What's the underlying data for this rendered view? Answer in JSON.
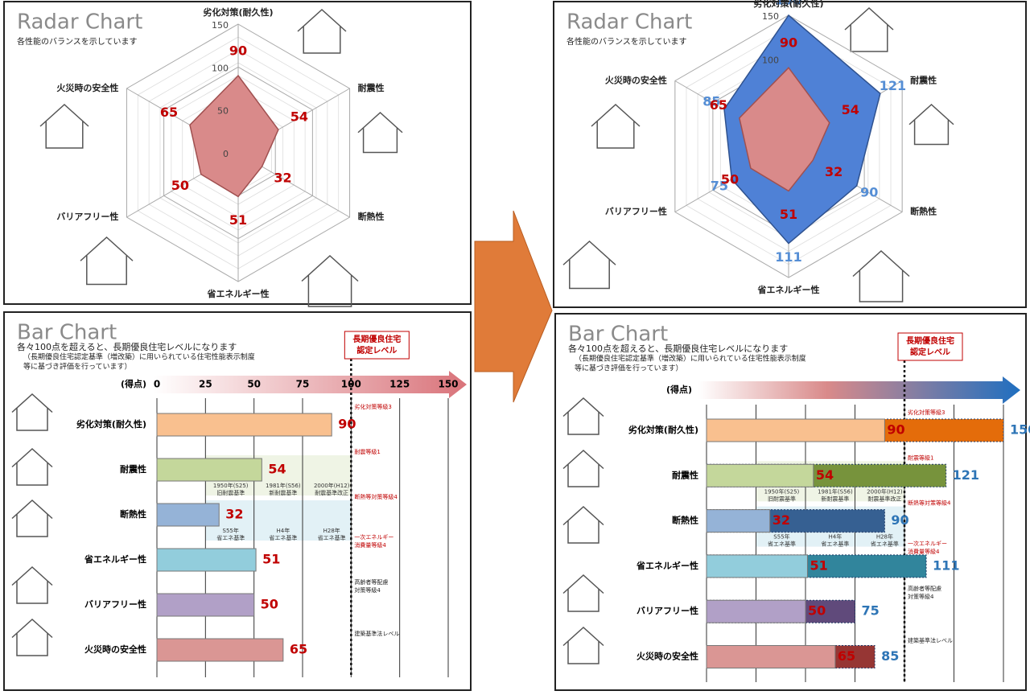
{
  "chart_data": [
    {
      "type": "radar",
      "title": "Radar Chart",
      "subtitle": "各性能のバランスを示しています",
      "categories": [
        "劣化対策(耐久性)",
        "耐震性",
        "断熱性",
        "省エネルギー性",
        "バリアフリー性",
        "火災時の安全性"
      ],
      "series": [
        {
          "color": "#d98a8a",
          "label_color": "#c00000",
          "values": [
            90,
            54,
            32,
            51,
            50,
            65
          ]
        }
      ],
      "rlim": [
        0,
        150
      ],
      "rticks": [
        0,
        50,
        100,
        150
      ]
    },
    {
      "type": "radar",
      "title": "Radar Chart",
      "subtitle": "各性能のバランスを示しています",
      "categories": [
        "劣化対策(耐久性)",
        "耐震性",
        "断熱性",
        "省エネルギー性",
        "バリアフリー性",
        "火災時の安全性"
      ],
      "series": [
        {
          "color": "#4f81d6",
          "label_color": "#558ed5",
          "values": [
            150,
            121,
            90,
            111,
            75,
            85
          ]
        },
        {
          "color": "#d98a8a",
          "label_color": "#c00000",
          "values": [
            90,
            54,
            32,
            51,
            50,
            65
          ]
        }
      ],
      "rlim": [
        0,
        150
      ],
      "rticks": [
        100,
        150
      ]
    },
    {
      "type": "bar",
      "title": "Bar Chart",
      "subtitle": [
        "各々100点を超えると、長期優良住宅レベルになります",
        "（長期優良住宅認定基準（増改築）に用いられている住宅性能表示制度",
        "等に基づき評価を行っています）"
      ],
      "xlabel": "(得点)",
      "categories": [
        "劣化対策(耐久性)",
        "耐震性",
        "断熱性",
        "省エネルギー性",
        "バリアフリー性",
        "火災時の安全性"
      ],
      "series": [
        {
          "colors": [
            "#f9c08f",
            "#c4d79b",
            "#95b3d7",
            "#92cddc",
            "#b1a0c7",
            "#da9694"
          ],
          "label_color": "#c00000",
          "values": [
            90,
            54,
            32,
            51,
            50,
            65
          ]
        }
      ],
      "xlim": [
        0,
        150
      ],
      "xticks": [
        0,
        25,
        50,
        75,
        100,
        125,
        150
      ],
      "show_tick_labels": true,
      "threshold": {
        "value": 100,
        "label": [
          "長期優良住宅",
          "認定レベル"
        ]
      },
      "level_notes": [
        [
          "劣化対策等級3"
        ],
        [
          "耐震等級1"
        ],
        [
          "断熱等対策等級4"
        ],
        [
          "一次エネルギー",
          "消費量等級4"
        ],
        [
          "高齢者等配慮",
          "対策等級4"
        ],
        [
          "建築基準法レベル"
        ]
      ],
      "era_notes": [
        [
          [
            "1950年(S25)",
            "旧耐震基準"
          ],
          [
            "1981年(S56)",
            "新耐震基準"
          ],
          [
            "2000年(H12)",
            "耐震基準改正"
          ]
        ],
        [
          [
            "S55年",
            "省エネ基準"
          ],
          [
            "H4年",
            "省エネ基準"
          ],
          [
            "H28年",
            "省エネ基準"
          ]
        ]
      ]
    },
    {
      "type": "bar",
      "title": "Bar Chart",
      "subtitle": [
        "各々100点を超えると、長期優良住宅レベルになります",
        "（長期優良住宅認定基準（増改築）に用いられている住宅性能表示制度",
        "等に基づき評価を行っています）"
      ],
      "xlabel": "(得点)",
      "categories": [
        "劣化対策(耐久性)",
        "耐震性",
        "断熱性",
        "省エネルギー性",
        "バリアフリー性",
        "火災時の安全性"
      ],
      "series": [
        {
          "colors": [
            "#f9c08f",
            "#c4d79b",
            "#95b3d7",
            "#92cddc",
            "#b1a0c7",
            "#da9694"
          ],
          "label_color": "#c00000",
          "values": [
            90,
            54,
            32,
            51,
            50,
            65
          ]
        },
        {
          "colors": [
            "#e46c0a",
            "#77933c",
            "#366092",
            "#31859c",
            "#604a7b",
            "#963634"
          ],
          "label_color": "#2e75b6",
          "values": [
            150,
            121,
            90,
            111,
            75,
            85
          ]
        }
      ],
      "xlim": [
        0,
        150
      ],
      "xticks": [
        0,
        25,
        50,
        75,
        100,
        125,
        150
      ],
      "show_tick_labels": false,
      "threshold": {
        "value": 100,
        "label": [
          "長期優良住宅",
          "認定レベル"
        ]
      },
      "level_notes": [
        [
          "劣化対策等級3"
        ],
        [
          "耐震等級1"
        ],
        [
          "断熱等対策等級4"
        ],
        [
          "一次エネルギー",
          "消費量等級4"
        ],
        [
          "高齢者等配慮",
          "対策等級4"
        ],
        [
          "建築基準法レベル"
        ]
      ],
      "era_notes": [
        [
          [
            "1950年(S25)",
            "旧耐震基準"
          ],
          [
            "1981年(S56)",
            "新耐震基準"
          ],
          [
            "2000年(H12)",
            "耐震基準改正"
          ]
        ],
        [
          [
            "S55年",
            "省エネ基準"
          ],
          [
            "H4年",
            "省エネ基準"
          ],
          [
            "H28年",
            "省エネ基準"
          ]
        ]
      ]
    }
  ]
}
